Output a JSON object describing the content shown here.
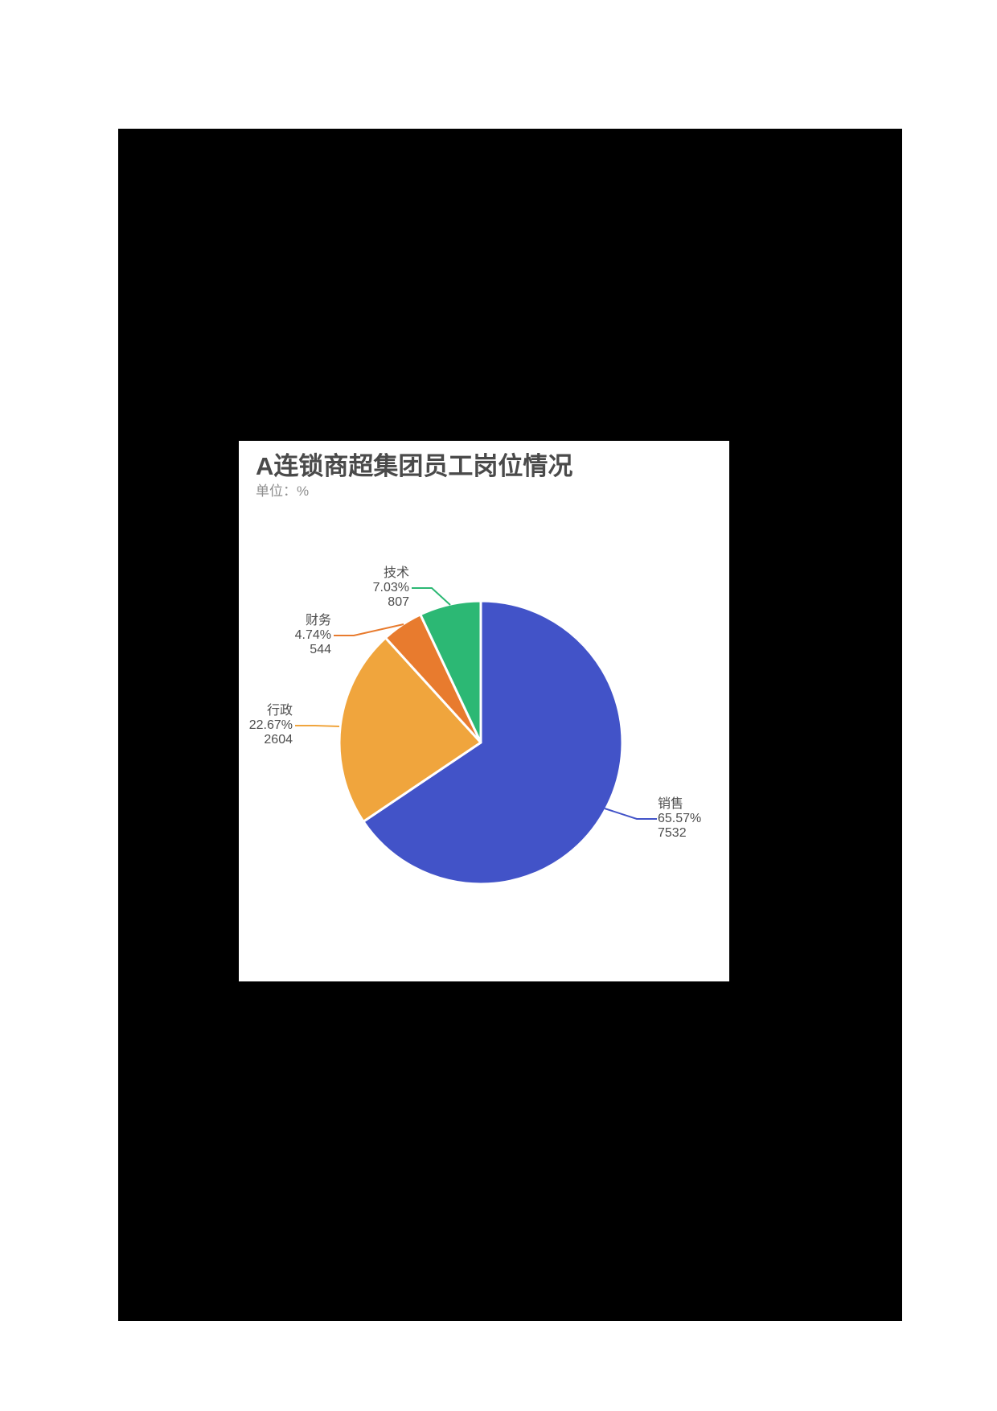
{
  "page": {
    "background": "#ffffff",
    "stage_background": "#000000",
    "card_background": "#ffffff"
  },
  "chart_data": {
    "type": "pie",
    "title": "A连锁商超集团员工岗位情况",
    "subtitle": "单位：%",
    "legend": "none",
    "start_angle_deg": 90,
    "clockwise": true,
    "label_format": "name / percent / value",
    "slices": [
      {
        "name": "销售",
        "pct": "65.57%",
        "value": 7532,
        "color": "#4253c8"
      },
      {
        "name": "行政",
        "pct": "22.67%",
        "value": 2604,
        "color": "#f0a53d"
      },
      {
        "name": "财务",
        "pct": "4.74%",
        "value": 544,
        "color": "#e87b2e"
      },
      {
        "name": "技术",
        "pct": "7.03%",
        "value": 807,
        "color": "#2cb874"
      }
    ],
    "text_colors": {
      "title": "#4a4a4a",
      "subtitle": "#8e8e8e",
      "labels": "#4d4d4d"
    }
  }
}
